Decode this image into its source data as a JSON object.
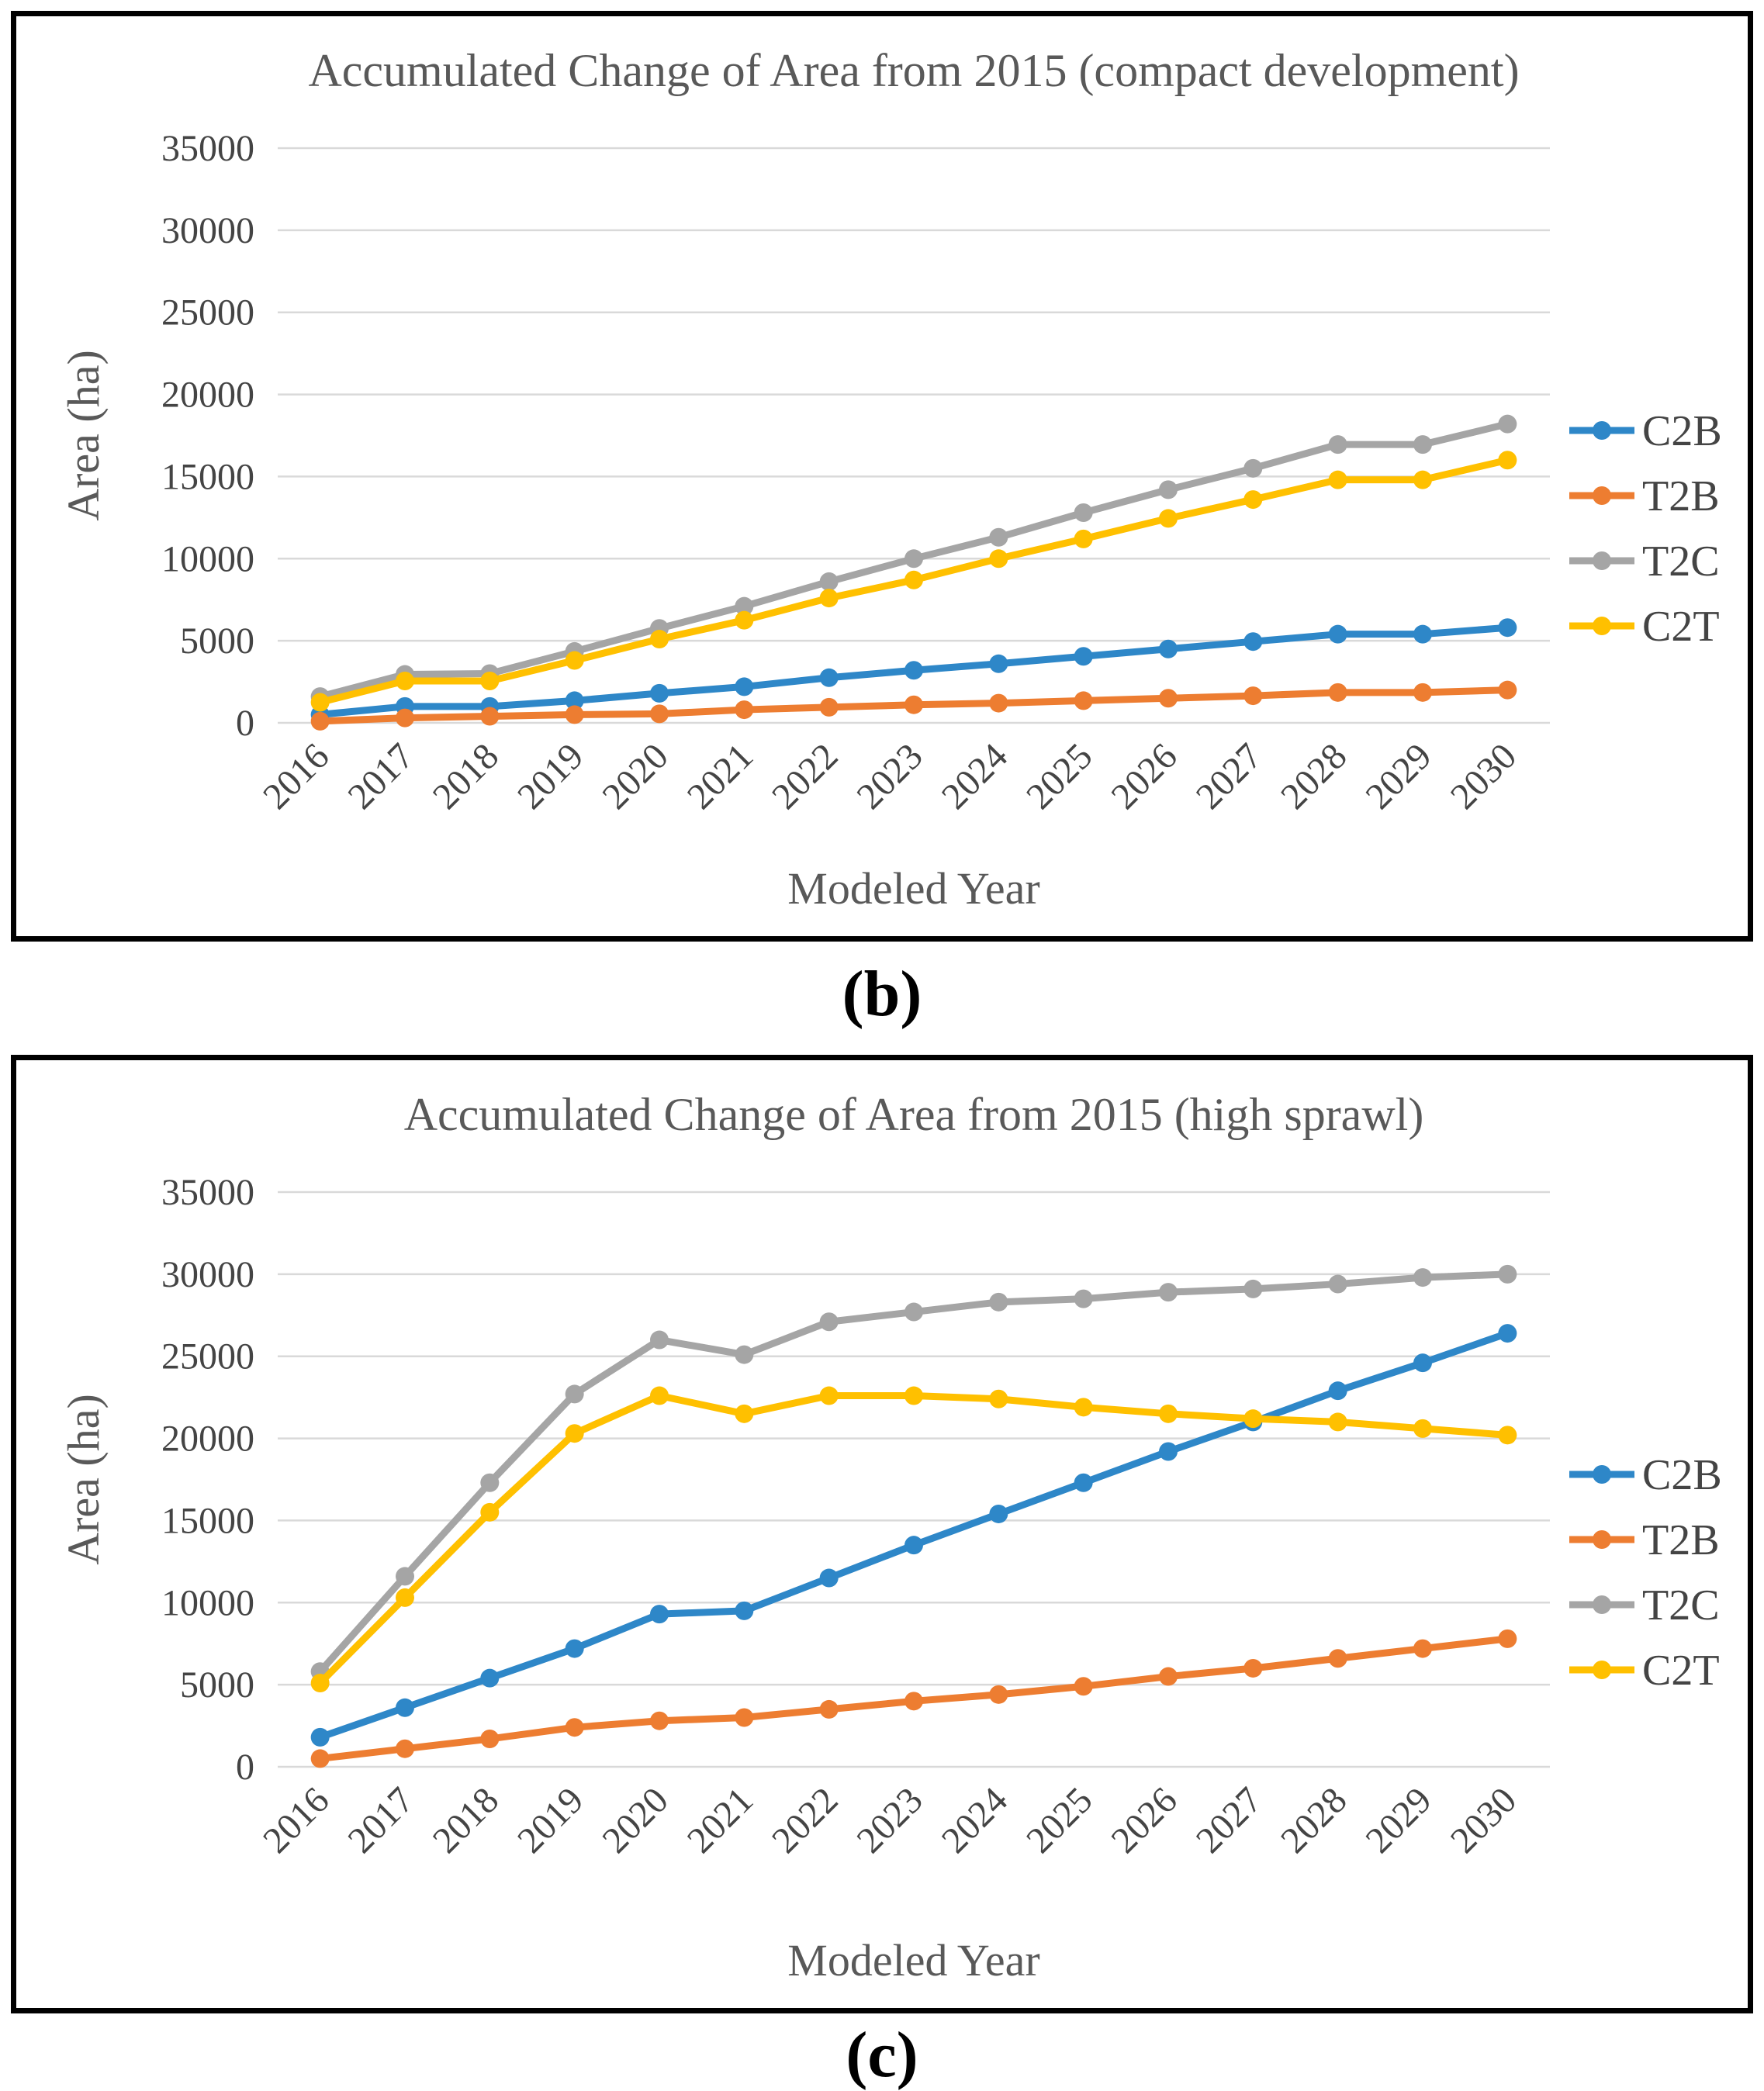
{
  "figure": {
    "panel_b_label": "(b)",
    "panel_c_label": "(c)"
  },
  "colors": {
    "c2b_blue": "#2E87C8",
    "t2b_orange": "#ED7D31",
    "t2c_gray": "#A5A5A5",
    "c2t_yellow": "#FFC000",
    "title_text": "#595959",
    "tick_text": "#444444",
    "gridline": "#D9D9D9",
    "panel_border": "#000000"
  },
  "chart_data": [
    {
      "type": "line",
      "title": "Accumulated Change of Area from 2015 (compact development)",
      "xlabel": "Modeled Year",
      "ylabel": "Area (ha)",
      "ylim": [
        0,
        35000
      ],
      "yticks": [
        0,
        5000,
        10000,
        15000,
        20000,
        25000,
        30000,
        35000
      ],
      "grid": true,
      "legend_position": "right",
      "categories": [
        "2016",
        "2017",
        "2018",
        "2019",
        "2020",
        "2021",
        "2022",
        "2023",
        "2024",
        "2025",
        "2026",
        "2027",
        "2028",
        "2029",
        "2030"
      ],
      "series": [
        {
          "name": "C2B",
          "color": "#2E87C8",
          "values": [
            500,
            1000,
            1000,
            1350,
            1800,
            2200,
            2750,
            3200,
            3600,
            4050,
            4500,
            4950,
            5400,
            5400,
            5800
          ]
        },
        {
          "name": "T2B",
          "color": "#ED7D31",
          "values": [
            100,
            300,
            400,
            500,
            550,
            800,
            950,
            1100,
            1200,
            1350,
            1500,
            1650,
            1850,
            1850,
            2000
          ]
        },
        {
          "name": "T2C",
          "color": "#A5A5A5",
          "values": [
            1600,
            2950,
            3000,
            4350,
            5750,
            7100,
            8600,
            10000,
            11300,
            12800,
            14200,
            15500,
            16950,
            16950,
            18200
          ]
        },
        {
          "name": "C2T",
          "color": "#FFC000",
          "values": [
            1250,
            2550,
            2550,
            3800,
            5100,
            6250,
            7600,
            8700,
            10000,
            11200,
            12450,
            13600,
            14800,
            14800,
            16000
          ]
        }
      ]
    },
    {
      "type": "line",
      "title": "Accumulated Change of Area from 2015 (high sprawl)",
      "xlabel": "Modeled Year",
      "ylabel": "Area (ha)",
      "ylim": [
        0,
        35000
      ],
      "yticks": [
        0,
        5000,
        10000,
        15000,
        20000,
        25000,
        30000,
        35000
      ],
      "grid": true,
      "legend_position": "right",
      "categories": [
        "2016",
        "2017",
        "2018",
        "2019",
        "2020",
        "2021",
        "2022",
        "2023",
        "2024",
        "2025",
        "2026",
        "2027",
        "2028",
        "2029",
        "2030"
      ],
      "series": [
        {
          "name": "C2B",
          "color": "#2E87C8",
          "values": [
            1800,
            3600,
            5400,
            7200,
            9300,
            9500,
            11500,
            13500,
            15400,
            17300,
            19200,
            21000,
            22900,
            24600,
            26400
          ]
        },
        {
          "name": "T2B",
          "color": "#ED7D31",
          "values": [
            500,
            1100,
            1700,
            2400,
            2800,
            3000,
            3500,
            4000,
            4400,
            4900,
            5500,
            6000,
            6600,
            7200,
            7800
          ]
        },
        {
          "name": "T2C",
          "color": "#A5A5A5",
          "values": [
            5800,
            11600,
            17300,
            22700,
            26000,
            25100,
            27100,
            27700,
            28300,
            28500,
            28900,
            29100,
            29400,
            29800,
            30000
          ]
        },
        {
          "name": "C2T",
          "color": "#FFC000",
          "values": [
            5100,
            10300,
            15500,
            20300,
            22600,
            21500,
            22600,
            22600,
            22400,
            21900,
            21500,
            21200,
            21000,
            20600,
            20200
          ]
        }
      ]
    }
  ]
}
